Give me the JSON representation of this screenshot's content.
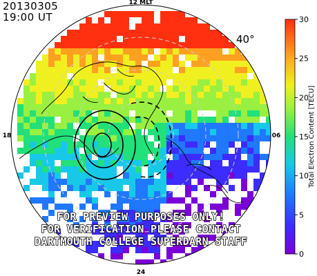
{
  "header": {
    "date": "20130305",
    "time": "19:00 UT"
  },
  "map": {
    "latitude_label": "40°",
    "mlt_top": "12 MLT",
    "mlt_left": "18",
    "mlt_right": "06",
    "mlt_bottom": "24"
  },
  "watermark": {
    "line1": "FOR PREVIEW PURPOSES ONLY!",
    "line2": "FOR VERIFICATION PLEASE CONTACT",
    "line3": "DARTMOUTH COLLEGE SUPERDARN STAFF"
  },
  "colorbar": {
    "label": "Total Electron Content [TECU]",
    "ticks": [
      "0",
      "5",
      "10",
      "15",
      "20",
      "25",
      "30"
    ],
    "min": 0,
    "max": 30,
    "colors": [
      "#7a00d8",
      "#3c2cff",
      "#1f78ff",
      "#18c8e8",
      "#22e07a",
      "#9af040",
      "#f0f020",
      "#ffa020",
      "#ff3010"
    ]
  }
}
